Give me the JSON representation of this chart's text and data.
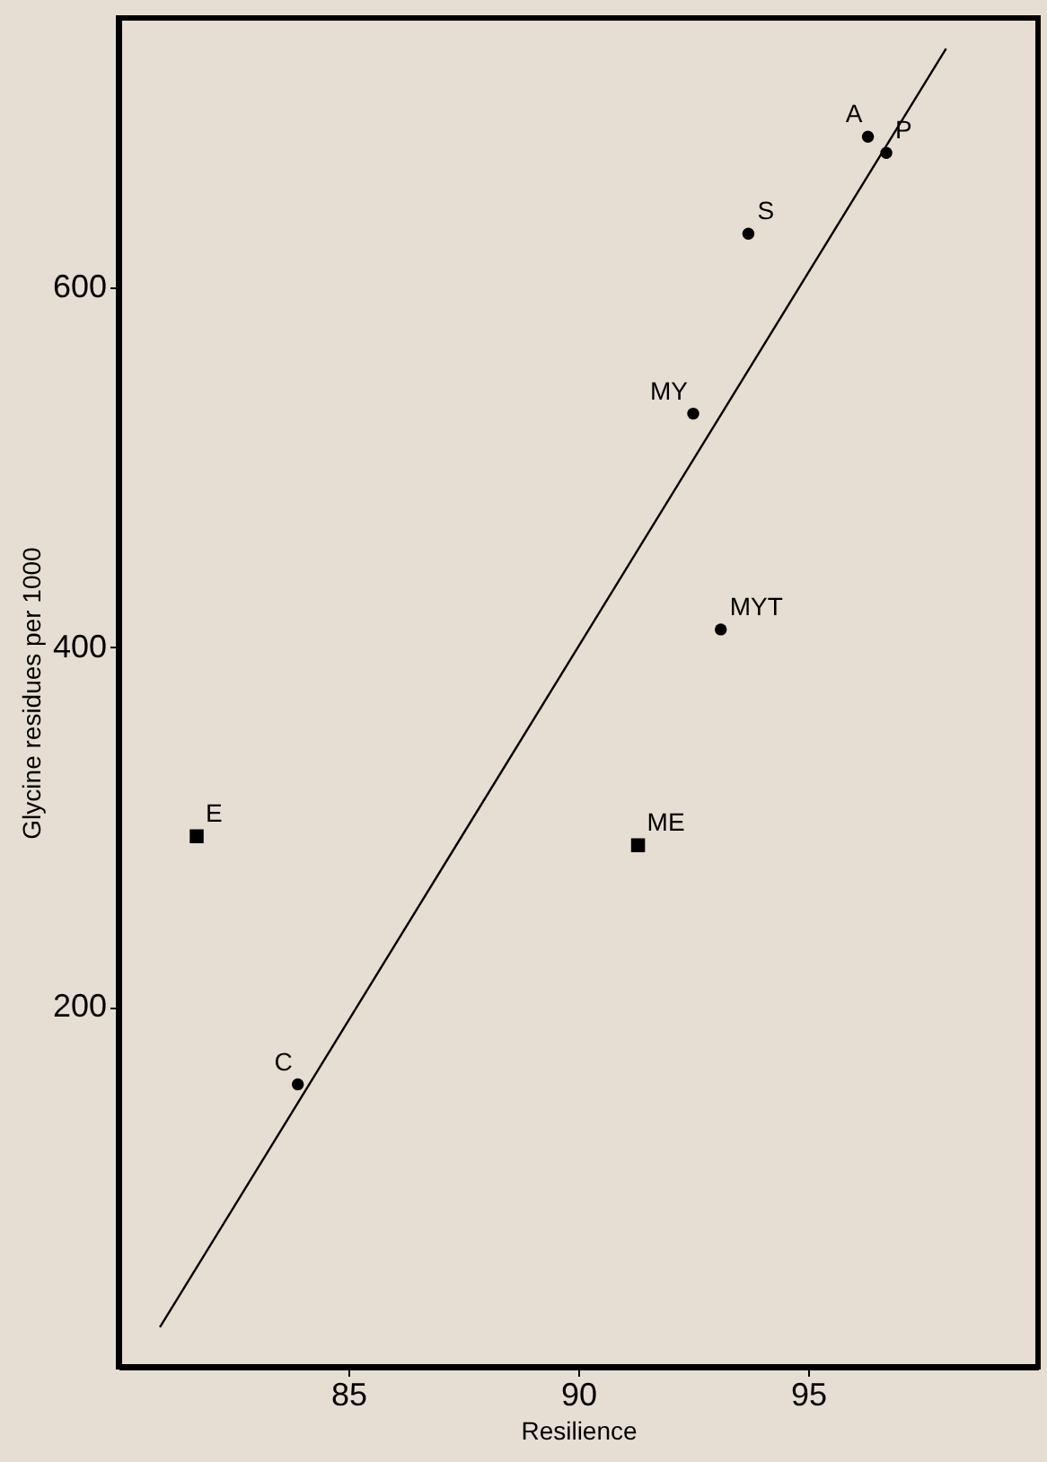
{
  "chart_data": {
    "type": "scatter",
    "xlabel": "Resilience",
    "ylabel": "Glycine residues per 1000",
    "xlim": [
      80,
      100
    ],
    "xticks": [
      85,
      90,
      95
    ],
    "ylim": [
      0,
      750
    ],
    "yticks": [
      200,
      400,
      600
    ],
    "grid": false,
    "series": [
      {
        "marker": "circle",
        "color": "#000000",
        "x": [
          96.3,
          96.7,
          93.7,
          92.5,
          93.1,
          83.9
        ],
        "values": [
          684,
          675,
          630,
          530,
          410,
          157
        ]
      },
      {
        "marker": "square",
        "color": "#000000",
        "x": [
          81.7,
          91.3
        ],
        "values": [
          295,
          290
        ]
      },
      {
        "type": "line",
        "marker": "none",
        "line_style": "solid",
        "color": "#000000",
        "x": [
          80.9,
          98.0
        ],
        "values": [
          22,
          733
        ]
      }
    ],
    "annotations": [
      {
        "text": "A",
        "x": 96.3,
        "y": 684
      },
      {
        "text": "P",
        "x": 96.7,
        "y": 675
      },
      {
        "text": "S",
        "x": 93.7,
        "y": 630
      },
      {
        "text": "MY",
        "x": 92.5,
        "y": 530
      },
      {
        "text": "MYT",
        "x": 93.1,
        "y": 410
      },
      {
        "text": "C",
        "x": 83.9,
        "y": 157
      },
      {
        "text": "E",
        "x": 81.7,
        "y": 295
      },
      {
        "text": "ME",
        "x": 91.3,
        "y": 290
      }
    ]
  }
}
